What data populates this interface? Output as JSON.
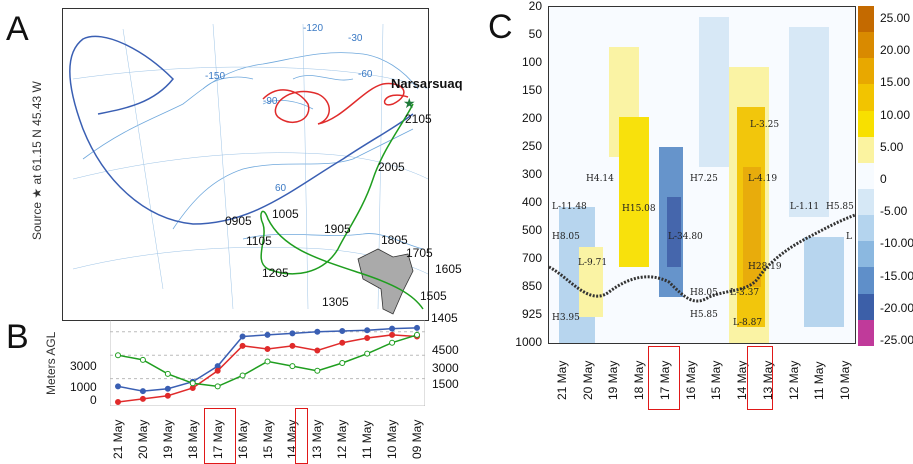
{
  "panels": {
    "a": "A",
    "b": "B",
    "c": "C"
  },
  "map": {
    "source_label": "Source ★ at   61.15 N   45.43 W",
    "station": "Narsarsuaq",
    "lon_labels": [
      "-150",
      "-120",
      "-90",
      "-60",
      "-30"
    ],
    "lat_label": "60",
    "time_labels": [
      "2105",
      "2005",
      "1905",
      "1805",
      "1705",
      "1605",
      "1505",
      "1405",
      "1305",
      "1205",
      "1105",
      "1005",
      "0905"
    ]
  },
  "panel_b": {
    "ylabel": "Meters AGL",
    "left_ticks": [
      "3000",
      "1000",
      "0"
    ],
    "right_ticks": [
      "4500",
      "3000",
      "1500"
    ],
    "dates": [
      "21 May",
      "20 May",
      "19 May",
      "18 May",
      "17 May",
      "16 May",
      "15 May",
      "14 May",
      "13 May",
      "12 May",
      "11 May",
      "10 May",
      "09 May"
    ]
  },
  "panel_c": {
    "y_ticks": [
      "20",
      "50",
      "100",
      "150",
      "200",
      "250",
      "300",
      "400",
      "500",
      "700",
      "850",
      "925",
      "1000"
    ],
    "dates": [
      "21 May",
      "20 May",
      "19 May",
      "18 May",
      "17 May",
      "16 May",
      "15 May",
      "14 May",
      "13 May",
      "12 May",
      "11 May",
      "10 May"
    ],
    "colorbar_ticks": [
      "25.00",
      "20.00",
      "15.00",
      "10.00",
      "5.00",
      "0",
      "-5.00",
      "-10.00",
      "-15.00",
      "-20.00",
      "-25.00"
    ],
    "colorbar_colors": [
      "#c46a00",
      "#d98a00",
      "#e8a800",
      "#f2c400",
      "#f8e000",
      "#fbf3a0",
      "#f7fbff",
      "#d6e8f6",
      "#b4d4ee",
      "#8bb8e0",
      "#5f8fc9",
      "#3c5fa8",
      "#c03a9a"
    ],
    "annotations": [
      "H3.95",
      "L-9.71",
      "H8.05",
      "L-11.48",
      "H4.14",
      "H15.08",
      "L-34.80",
      "H8.05",
      "H5.85",
      "H7.25",
      "L-3.37",
      "L-8.87",
      "H28.19",
      "L-4.19",
      "L-3.25",
      "L-1.11",
      "H5.85",
      "L"
    ]
  },
  "chart_data": {
    "type": "line",
    "title": "",
    "xlabel": "",
    "ylabel": "Meters AGL",
    "categories": [
      "21 May",
      "20 May",
      "19 May",
      "18 May",
      "17 May",
      "16 May",
      "15 May",
      "14 May",
      "13 May",
      "12 May",
      "11 May",
      "10 May",
      "09 May"
    ],
    "ylim": [
      0,
      5000
    ],
    "series": [
      {
        "values": [
          1000,
          700,
          850,
          1300,
          2300,
          4200,
          4300,
          4400,
          4500,
          4550,
          4600,
          4700,
          4750
        ]
      },
      {
        "values": [
          0,
          200,
          400,
          900,
          2000,
          3600,
          3400,
          3600,
          3300,
          3800,
          4100,
          4300,
          4200
        ]
      },
      {
        "values": [
          3000,
          2700,
          1800,
          1200,
          1000,
          1700,
          2600,
          2300,
          2000,
          2500,
          3100,
          3800,
          4300
        ]
      }
    ]
  }
}
